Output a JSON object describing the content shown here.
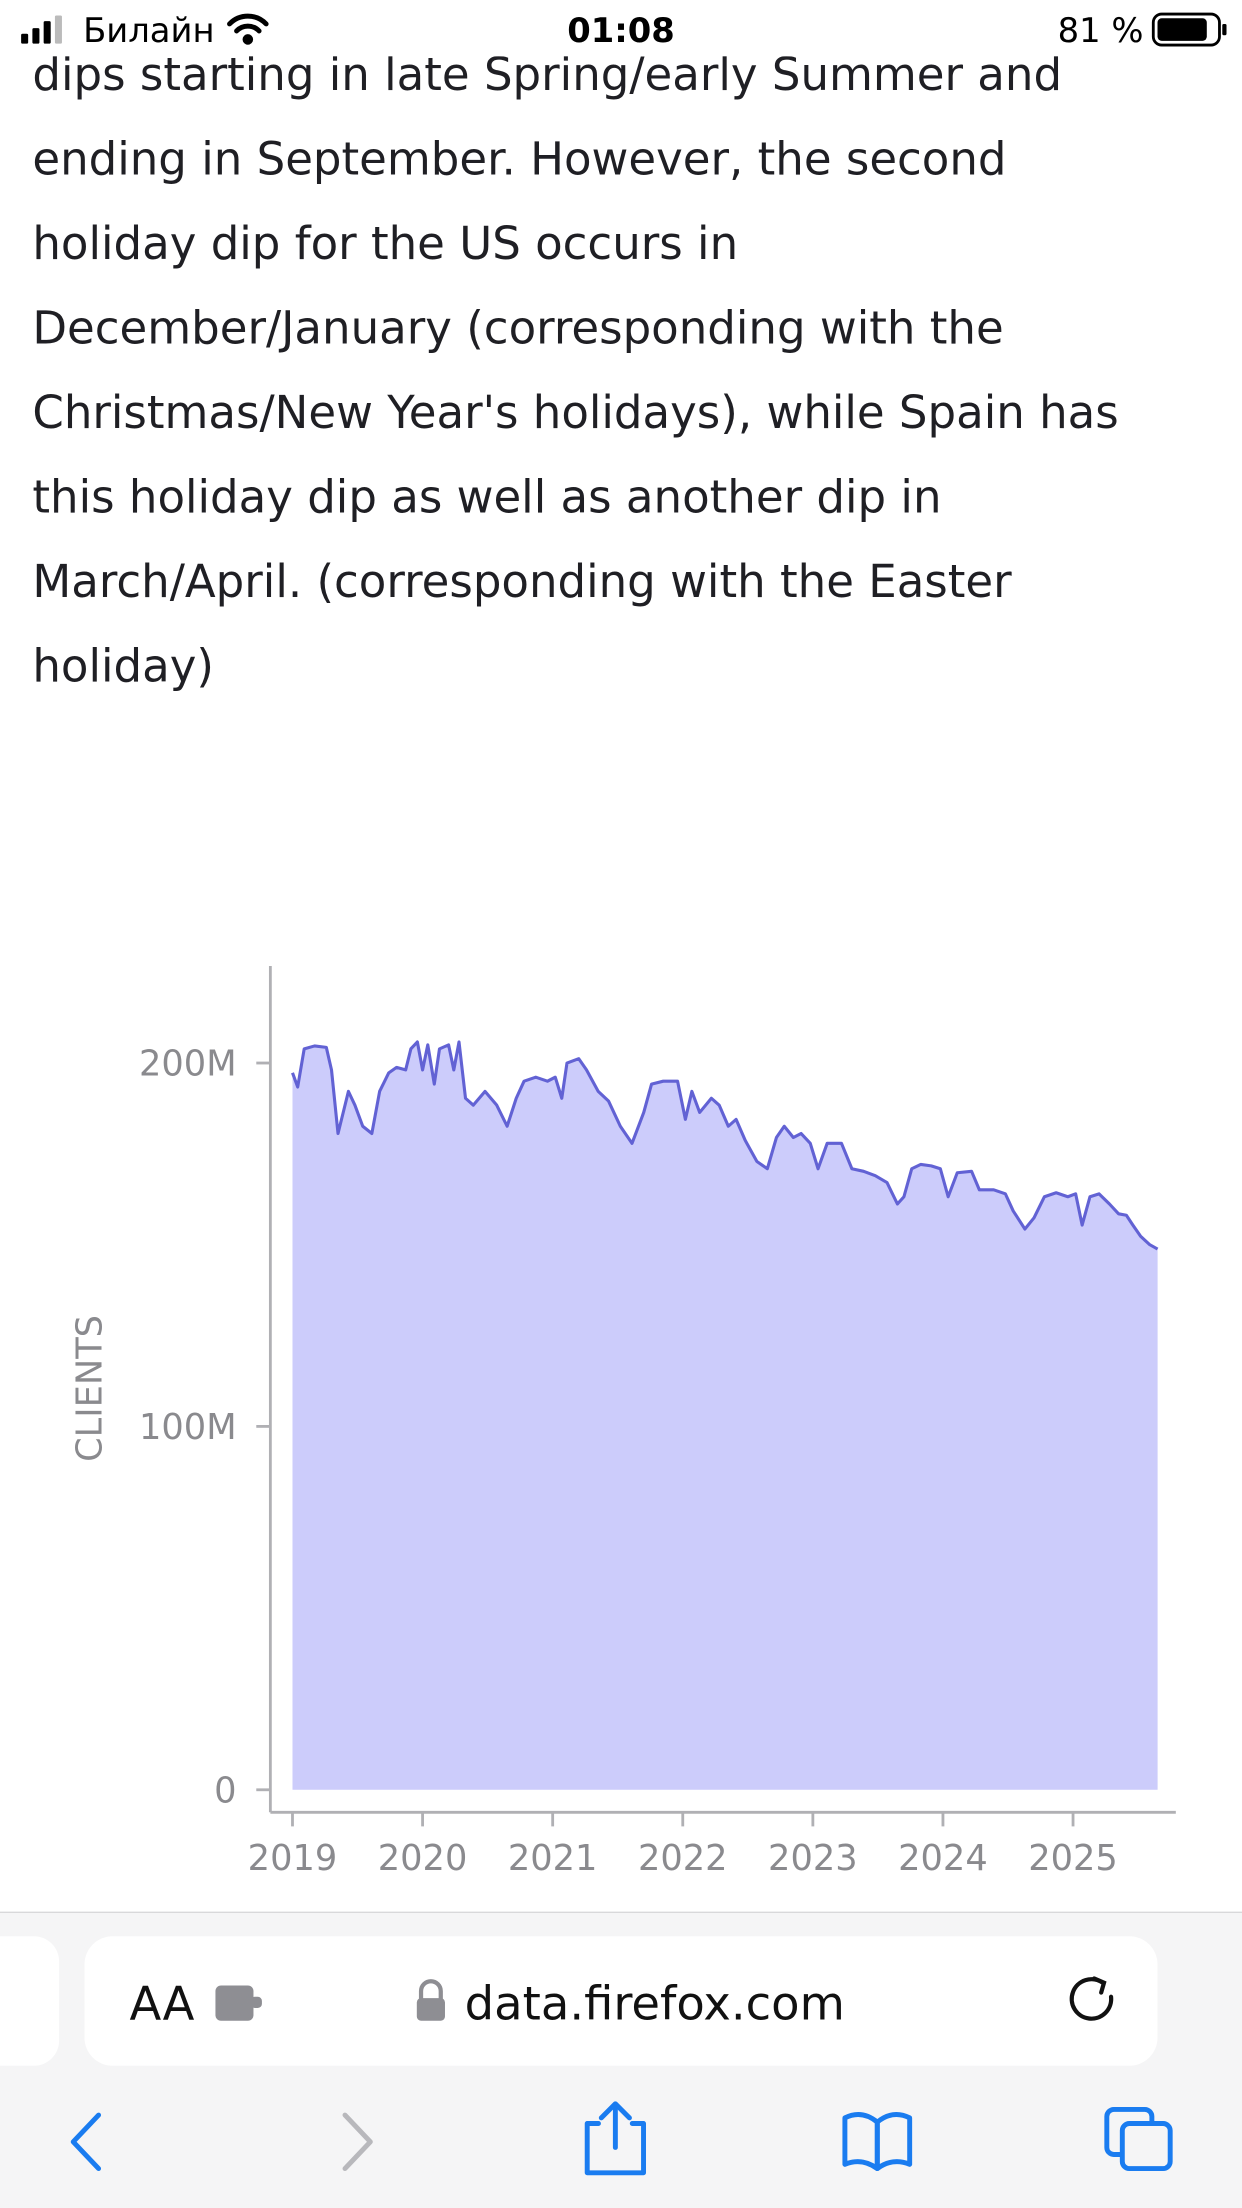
{
  "status_bar": {
    "carrier": "Билайн",
    "time": "01:08",
    "battery": "81 %"
  },
  "article": {
    "lines": [
      "dips starting in late Spring/early Summer and",
      "ending in September. However, the second",
      "holiday dip for the US occurs in",
      "December/January (corresponding with the",
      "Christmas/New Year's holidays), while Spain has",
      "this holiday dip as well as another dip in",
      "March/April. (corresponding with the Easter",
      "holiday)"
    ]
  },
  "chart_data": {
    "type": "area",
    "y_label": "CLIENTS",
    "color": "#6262d4",
    "fill_color": "#ccccfb",
    "x": [
      2019.0,
      2019.04,
      2019.09,
      2019.17,
      2019.26,
      2019.3,
      2019.35,
      2019.39,
      2019.43,
      2019.48,
      2019.54,
      2019.61,
      2019.67,
      2019.74,
      2019.8,
      2019.87,
      2019.91,
      2019.96,
      2020.0,
      2020.04,
      2020.09,
      2020.13,
      2020.2,
      2020.24,
      2020.28,
      2020.33,
      2020.39,
      2020.48,
      2020.57,
      2020.65,
      2020.72,
      2020.78,
      2020.87,
      2020.96,
      2021.02,
      2021.07,
      2021.11,
      2021.2,
      2021.26,
      2021.35,
      2021.43,
      2021.52,
      2021.61,
      2021.7,
      2021.76,
      2021.85,
      2021.96,
      2022.02,
      2022.07,
      2022.13,
      2022.22,
      2022.28,
      2022.35,
      2022.41,
      2022.48,
      2022.57,
      2022.65,
      2022.72,
      2022.78,
      2022.85,
      2022.91,
      2022.98,
      2023.04,
      2023.11,
      2023.22,
      2023.3,
      2023.39,
      2023.48,
      2023.57,
      2023.65,
      2023.7,
      2023.76,
      2023.83,
      2023.91,
      2023.98,
      2024.04,
      2024.11,
      2024.22,
      2024.28,
      2024.39,
      2024.48,
      2024.54,
      2024.63,
      2024.7,
      2024.78,
      2024.87,
      2024.96,
      2025.02,
      2025.07,
      2025.13,
      2025.2,
      2025.28,
      2025.35,
      2025.41,
      2025.46,
      2025.52,
      2025.59,
      2025.65
    ],
    "values": [
      197300000,
      193400000,
      203900000,
      204700000,
      204300000,
      198100000,
      180600000,
      186400000,
      192200000,
      188400000,
      182600000,
      180600000,
      192200000,
      197300000,
      198800000,
      198100000,
      203900000,
      205800000,
      198100000,
      205000000,
      194200000,
      203900000,
      205000000,
      198100000,
      205800000,
      190300000,
      188400000,
      192200000,
      188400000,
      182600000,
      190300000,
      195000000,
      196100000,
      195000000,
      196100000,
      190300000,
      200000000,
      201200000,
      198100000,
      192200000,
      189500000,
      182600000,
      177900000,
      186400000,
      194200000,
      195000000,
      195000000,
      184500000,
      192200000,
      186400000,
      190300000,
      188400000,
      182600000,
      184500000,
      178700000,
      172900000,
      170900000,
      179500000,
      182600000,
      179500000,
      180600000,
      177900000,
      170900000,
      177900000,
      177900000,
      170900000,
      170200000,
      169000000,
      167100000,
      161200000,
      163200000,
      170900000,
      172100000,
      171700000,
      170900000,
      163200000,
      169800000,
      170200000,
      165100000,
      165100000,
      164000000,
      159300000,
      154300000,
      157400000,
      163200000,
      164300000,
      163200000,
      164000000,
      155400000,
      163200000,
      164000000,
      161200000,
      158500000,
      158100000,
      155400000,
      152300000,
      150000000,
      148800000
    ],
    "xlim": [
      2018.83,
      2025.79
    ],
    "xticks": [
      2019,
      2020,
      2021,
      2022,
      2023,
      2024,
      2025
    ],
    "ylim": [
      -6200000,
      226700000
    ],
    "yticks": [
      {
        "value": 0,
        "label": "0"
      },
      {
        "value": 100000000,
        "label": "100M"
      },
      {
        "value": 200000000,
        "label": "200M"
      }
    ]
  },
  "browser": {
    "text_size": "AA",
    "url": "data.firefox.com"
  }
}
